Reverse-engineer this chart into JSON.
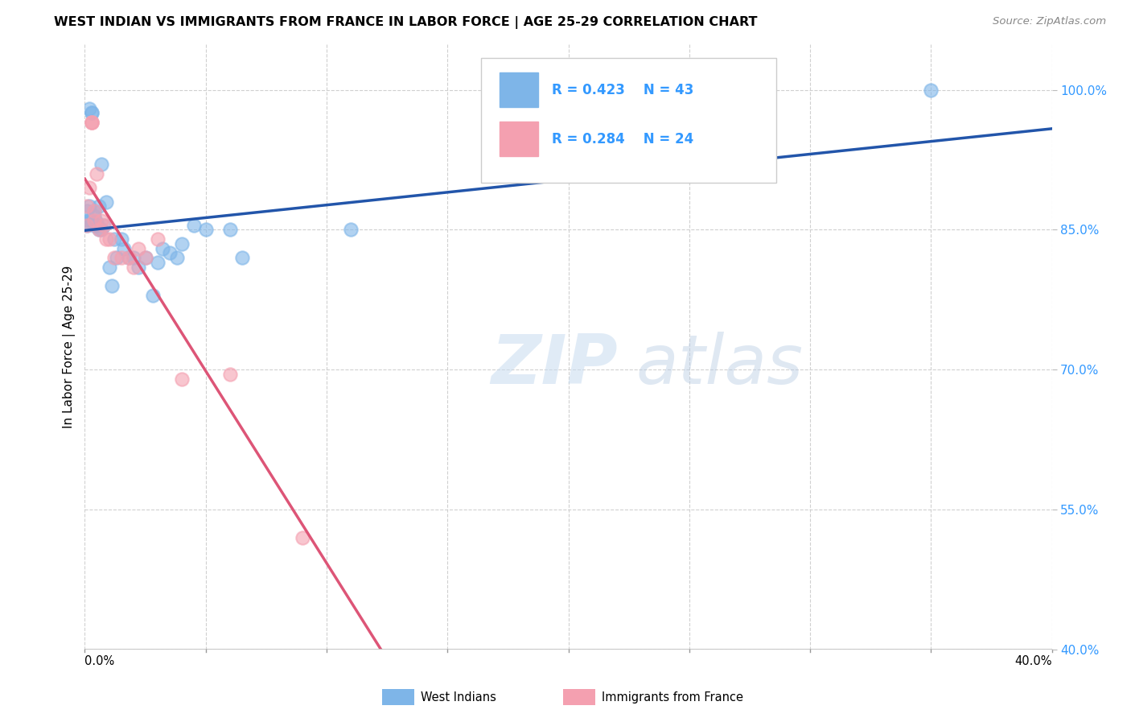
{
  "title": "WEST INDIAN VS IMMIGRANTS FROM FRANCE IN LABOR FORCE | AGE 25-29 CORRELATION CHART",
  "source": "Source: ZipAtlas.com",
  "ylabel": "In Labor Force | Age 25-29",
  "ylabel_right_ticks": [
    "100.0%",
    "85.0%",
    "70.0%",
    "55.0%",
    "40.0%"
  ],
  "ylabel_right_vals": [
    1.0,
    0.85,
    0.7,
    0.55,
    0.4
  ],
  "legend_blue_R": "R = 0.423",
  "legend_blue_N": "N = 43",
  "legend_pink_R": "R = 0.284",
  "legend_pink_N": "N = 24",
  "blue_color": "#7eb5e8",
  "pink_color": "#f4a0b0",
  "blue_line_color": "#2255aa",
  "pink_line_color": "#dd5577",
  "legend_text_color": "#3399ff",
  "watermark_zip": "ZIP",
  "watermark_atlas": "atlas",
  "blue_points_x": [
    0.001,
    0.001,
    0.001,
    0.002,
    0.002,
    0.002,
    0.003,
    0.003,
    0.003,
    0.004,
    0.004,
    0.004,
    0.005,
    0.005,
    0.005,
    0.006,
    0.006,
    0.007,
    0.007,
    0.008,
    0.009,
    0.01,
    0.011,
    0.012,
    0.013,
    0.015,
    0.016,
    0.018,
    0.02,
    0.022,
    0.025,
    0.028,
    0.03,
    0.032,
    0.035,
    0.038,
    0.04,
    0.045,
    0.05,
    0.06,
    0.065,
    0.11,
    0.35
  ],
  "blue_points_y": [
    0.855,
    0.86,
    0.87,
    0.86,
    0.875,
    0.98,
    0.86,
    0.975,
    0.975,
    0.855,
    0.865,
    0.87,
    0.855,
    0.855,
    0.858,
    0.85,
    0.875,
    0.92,
    0.85,
    0.855,
    0.88,
    0.81,
    0.79,
    0.84,
    0.82,
    0.84,
    0.83,
    0.82,
    0.82,
    0.81,
    0.82,
    0.78,
    0.815,
    0.83,
    0.825,
    0.82,
    0.835,
    0.855,
    0.85,
    0.85,
    0.82,
    0.85,
    1.0
  ],
  "pink_points_x": [
    0.001,
    0.001,
    0.002,
    0.003,
    0.003,
    0.003,
    0.004,
    0.004,
    0.005,
    0.006,
    0.007,
    0.008,
    0.009,
    0.01,
    0.012,
    0.015,
    0.018,
    0.02,
    0.022,
    0.025,
    0.03,
    0.04,
    0.06,
    0.09
  ],
  "pink_points_y": [
    0.855,
    0.875,
    0.895,
    0.965,
    0.965,
    0.965,
    0.86,
    0.87,
    0.91,
    0.85,
    0.86,
    0.855,
    0.84,
    0.84,
    0.82,
    0.82,
    0.82,
    0.81,
    0.83,
    0.82,
    0.84,
    0.69,
    0.695,
    0.52
  ],
  "xlim": [
    0.0,
    0.4
  ],
  "ylim": [
    0.4,
    1.05
  ],
  "x_gridlines": [
    0.0,
    0.05,
    0.1,
    0.15,
    0.2,
    0.25,
    0.3,
    0.35,
    0.4
  ]
}
